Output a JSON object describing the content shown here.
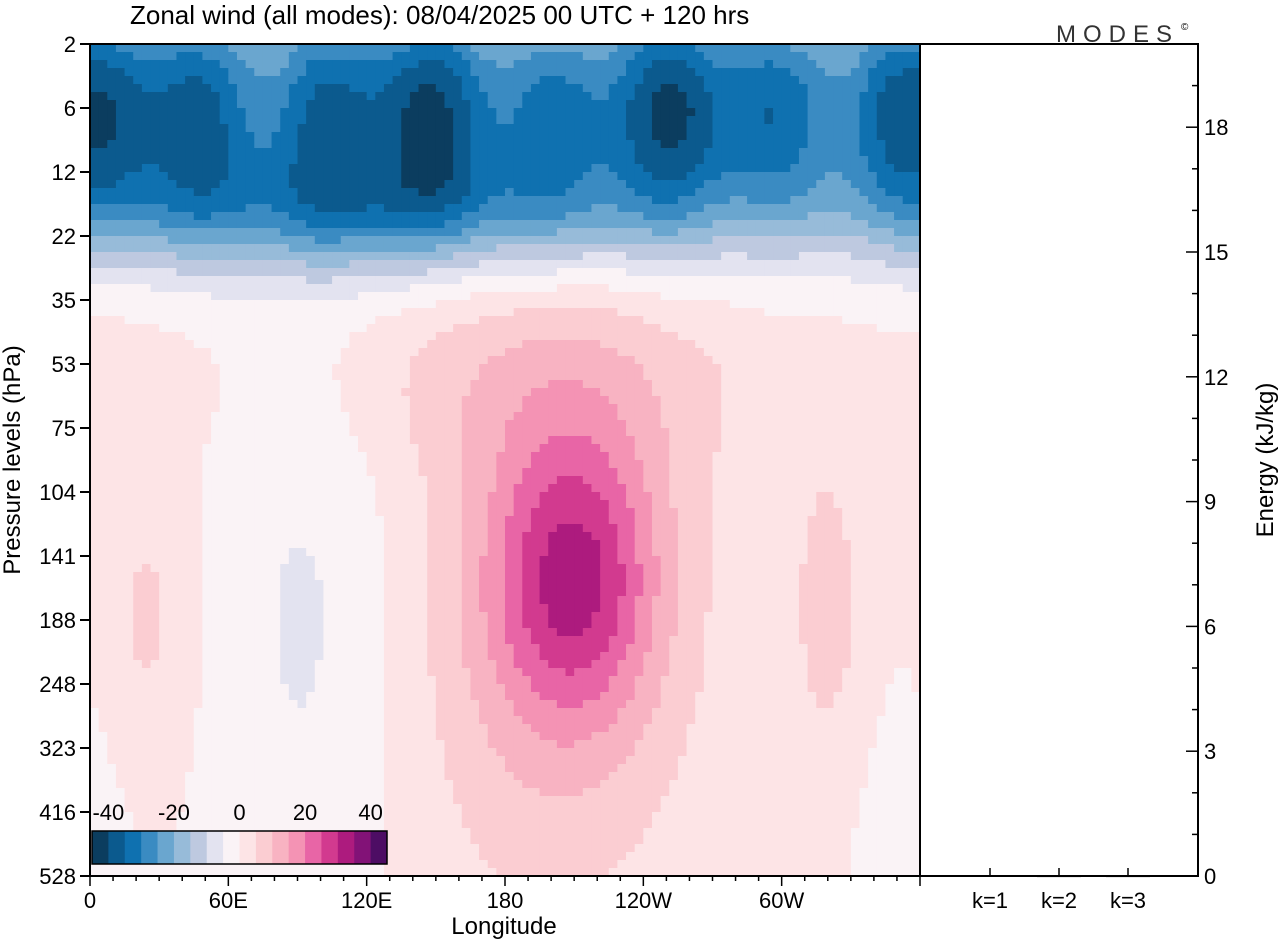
{
  "title": "Zonal wind (all modes):  08/04/2025  00 UTC  + 120 hrs",
  "logo": {
    "text": "MODES",
    "mark": "©"
  },
  "chart_data": [
    {
      "type": "heatmap",
      "field": "zonal wind",
      "xlabel": "Longitude",
      "ylabel": "Pressure levels (hPa)",
      "x_ticks": [
        "0",
        "60E",
        "120E",
        "180",
        "120W",
        "60W"
      ],
      "x_range": [
        0,
        360
      ],
      "y_ticks": [
        2,
        6,
        12,
        22,
        35,
        53,
        75,
        104,
        141,
        188,
        248,
        323,
        416,
        528
      ],
      "y_scale": "model levels (top to bottom)",
      "colorbar": {
        "tick_labels": [
          "-40",
          "-20",
          "0",
          "20",
          "40"
        ],
        "range": [
          -45,
          45
        ],
        "step": 5,
        "colors": [
          "#0b3d5f",
          "#0b5a8e",
          "#0f71b0",
          "#3a8bc2",
          "#6aa6cf",
          "#97bbd9",
          "#bec9e0",
          "#e3e3f0",
          "#faf3f6",
          "#fde4e6",
          "#fbcdd2",
          "#f8b3c2",
          "#f493b4",
          "#e865a6",
          "#d23a8f",
          "#ad1b7e",
          "#821277",
          "#4d0d64"
        ]
      },
      "features": [
        {
          "name": "stratospheric easterlies",
          "levels_hPa": [
            2,
            22
          ],
          "longitudes": "all",
          "approx_value": -38
        },
        {
          "name": "upper-tropospheric westerly core",
          "levels_hPa": [
            104,
            188
          ],
          "longitude": "150W",
          "approx_value": 23
        }
      ]
    },
    {
      "type": "bar",
      "categories": [
        "k=1",
        "k=2",
        "k=3"
      ],
      "values": [
        0.02,
        0.01,
        0.01
      ],
      "ylabel": "Energy (kJ/kg)",
      "ylim": [
        0,
        20
      ],
      "y_ticks": [
        0,
        3,
        6,
        9,
        12,
        15,
        18
      ]
    }
  ]
}
